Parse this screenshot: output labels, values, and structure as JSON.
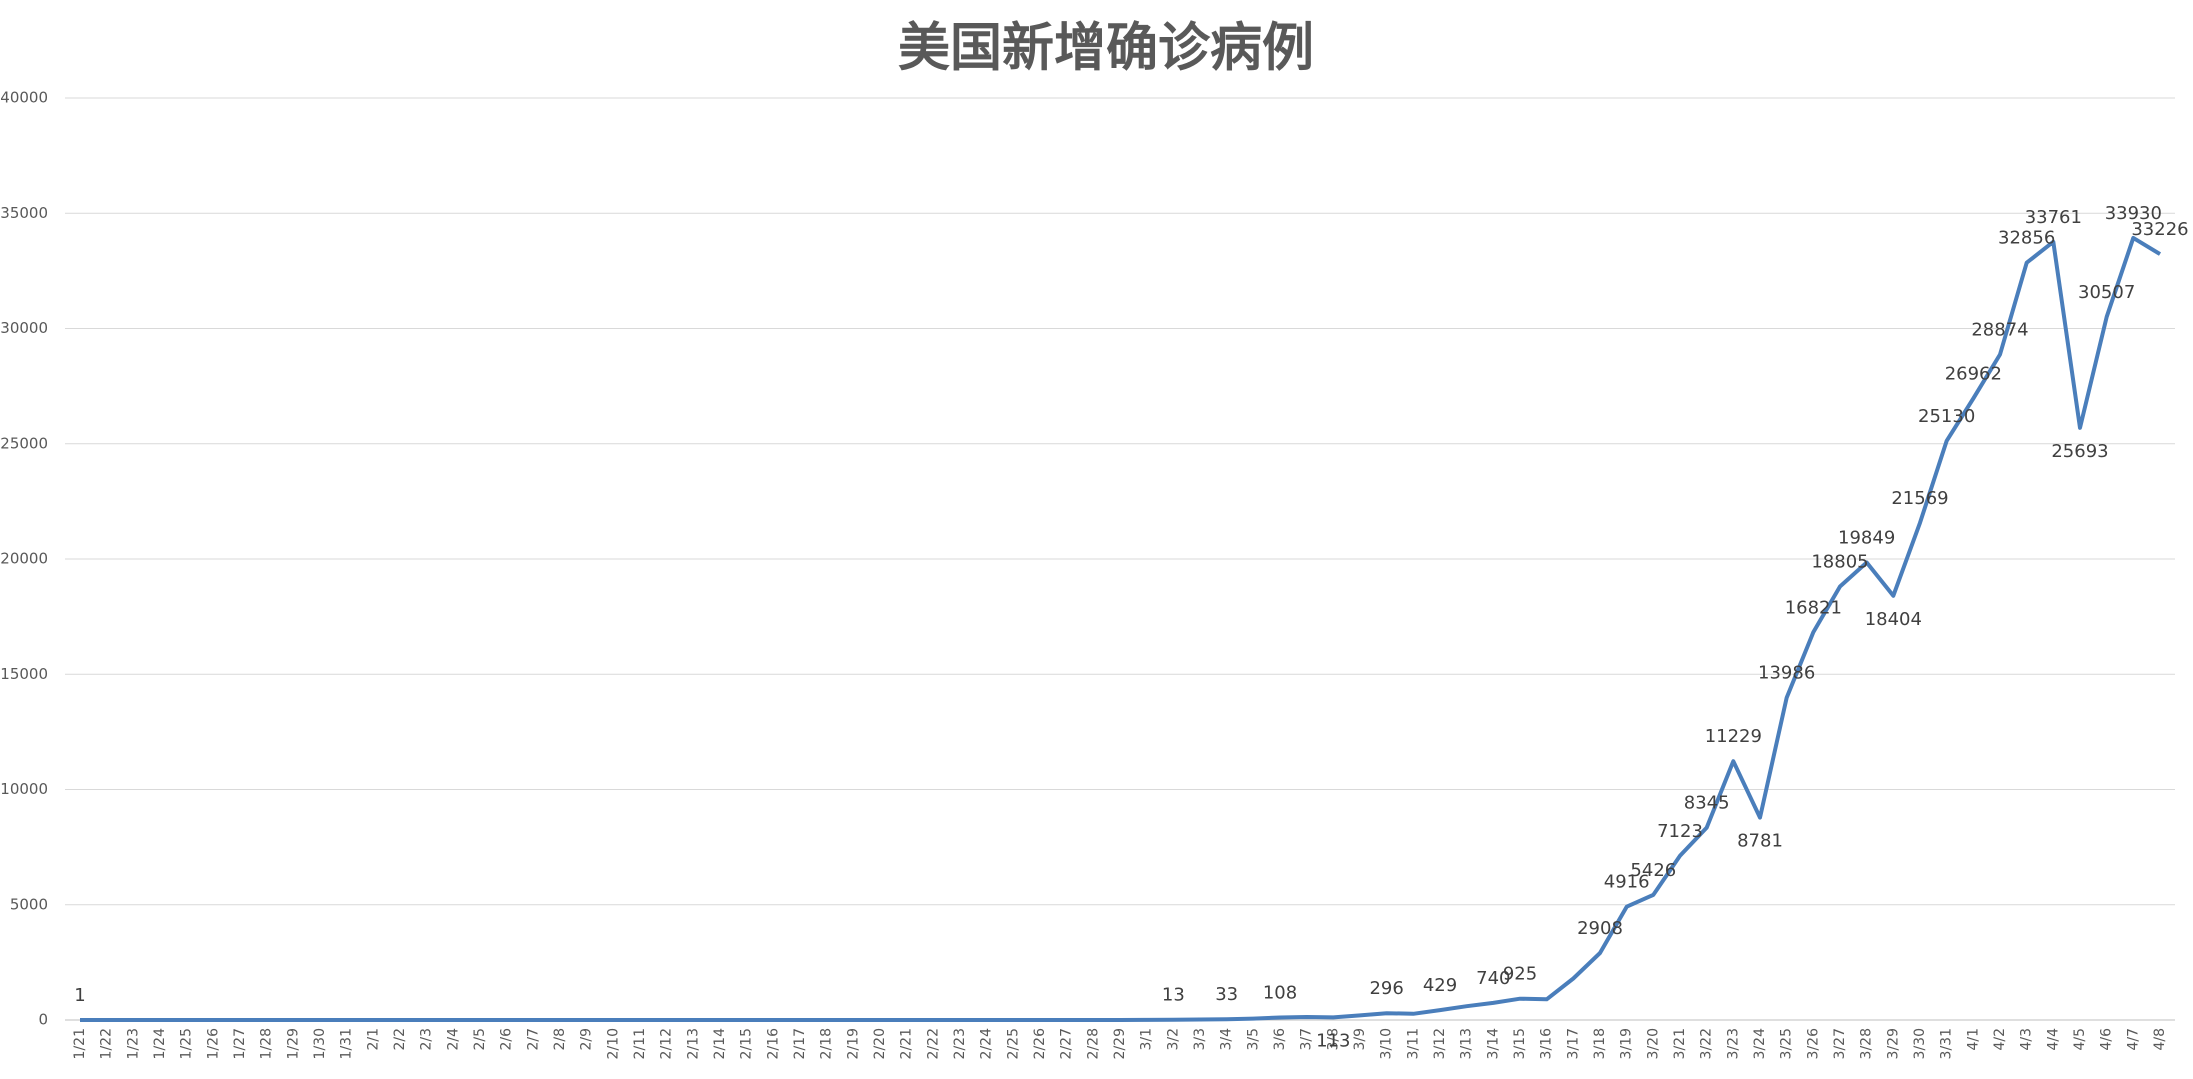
{
  "chart_data": {
    "type": "line",
    "title": "美国新增确诊病例",
    "categories": [
      "1/21",
      "1/22",
      "1/23",
      "1/24",
      "1/25",
      "1/26",
      "1/27",
      "1/28",
      "1/29",
      "1/30",
      "1/31",
      "2/1",
      "2/2",
      "2/3",
      "2/4",
      "2/5",
      "2/6",
      "2/7",
      "2/8",
      "2/9",
      "2/10",
      "2/11",
      "2/12",
      "2/13",
      "2/14",
      "2/15",
      "2/16",
      "2/17",
      "2/18",
      "2/19",
      "2/20",
      "2/21",
      "2/22",
      "2/23",
      "2/24",
      "2/25",
      "2/26",
      "2/27",
      "2/28",
      "2/29",
      "3/1",
      "3/2",
      "3/3",
      "3/4",
      "3/5",
      "3/6",
      "3/7",
      "3/8",
      "3/9",
      "3/10",
      "3/11",
      "3/12",
      "3/13",
      "3/14",
      "3/15",
      "3/16",
      "3/17",
      "3/18",
      "3/19",
      "3/20",
      "3/21",
      "3/22",
      "3/23",
      "3/24",
      "3/25",
      "3/26",
      "3/27",
      "3/28",
      "3/29",
      "3/30",
      "3/31",
      "4/1",
      "4/2",
      "4/3",
      "4/4",
      "4/5",
      "4/6",
      "4/7",
      "4/8"
    ],
    "series": [
      {
        "name": "新增确诊",
        "color": "#4a7ebb",
        "values": [
          1,
          0,
          0,
          0,
          1,
          0,
          0,
          0,
          0,
          0,
          1,
          1,
          0,
          0,
          0,
          1,
          0,
          0,
          0,
          0,
          1,
          0,
          1,
          0,
          0,
          0,
          0,
          0,
          0,
          0,
          0,
          0,
          0,
          0,
          0,
          0,
          1,
          0,
          2,
          2,
          4,
          13,
          20,
          33,
          60,
          108,
          130,
          113,
          200,
          296,
          270,
          429,
          600,
          740,
          925,
          900,
          1800,
          2908,
          4916,
          5426,
          7123,
          8345,
          11229,
          8781,
          13986,
          16821,
          18805,
          19849,
          18404,
          21569,
          25130,
          26962,
          28874,
          32856,
          33761,
          25693,
          30507,
          33930,
          33226
        ],
        "value_labels": [
          "1",
          null,
          null,
          null,
          null,
          null,
          null,
          null,
          null,
          null,
          null,
          null,
          null,
          null,
          null,
          null,
          null,
          null,
          null,
          null,
          null,
          null,
          null,
          null,
          null,
          null,
          null,
          null,
          null,
          null,
          null,
          null,
          null,
          null,
          null,
          null,
          null,
          null,
          null,
          null,
          null,
          "13",
          null,
          "33",
          null,
          "108",
          null,
          "113",
          null,
          "296",
          null,
          "429",
          null,
          "740",
          "925",
          null,
          null,
          "2908",
          "4916",
          "5426",
          "7123",
          "8345",
          "11229",
          "8781",
          "13986",
          "16821",
          "18805",
          "19849",
          "18404",
          "21569",
          "25130",
          "26962",
          "28874",
          "32856",
          "33761",
          "25693",
          "30507",
          "33930",
          "33226"
        ]
      }
    ],
    "ylim": [
      0,
      40000
    ],
    "yticks": [
      0,
      5000,
      10000,
      15000,
      20000,
      25000,
      30000,
      35000,
      40000
    ],
    "grid": true
  }
}
